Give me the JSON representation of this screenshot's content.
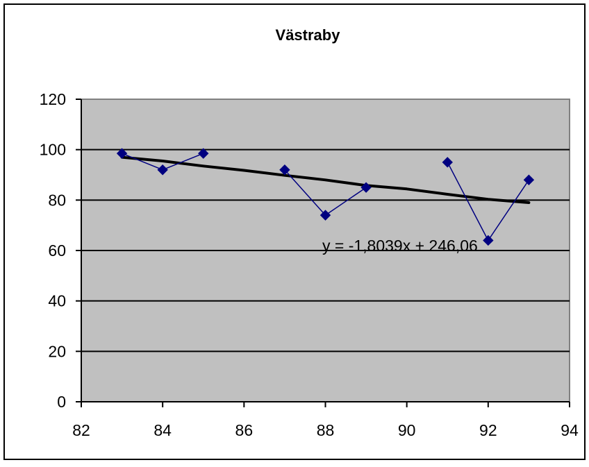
{
  "chart_data": {
    "type": "scatter",
    "title": "Västraby",
    "xlabel": "",
    "ylabel": "",
    "xlim": [
      82,
      94
    ],
    "ylim": [
      0,
      120
    ],
    "x_ticks": [
      82,
      84,
      86,
      88,
      90,
      92,
      94
    ],
    "y_ticks": [
      0,
      20,
      40,
      60,
      80,
      100,
      120
    ],
    "grid": "horizontal",
    "series": [
      {
        "x": [
          83,
          84,
          85,
          87,
          88,
          89,
          91,
          92,
          93
        ],
        "values": [
          98.5,
          92,
          98.5,
          92,
          74,
          85,
          95,
          64,
          88
        ],
        "segments": [
          [
            0,
            2
          ],
          [
            3,
            5
          ],
          [
            6,
            8
          ]
        ],
        "marker": "diamond",
        "color": "#000080"
      }
    ],
    "trendline": {
      "type": "polynomial",
      "x": [
        83,
        84,
        85,
        86,
        87,
        88,
        89,
        90,
        91,
        92,
        93
      ],
      "values": [
        97,
        95.5,
        93.5,
        91.8,
        89.8,
        88,
        85.8,
        84.4,
        82.3,
        80.3,
        79
      ],
      "color": "#000000",
      "equation": "y = -1,8039x + 246,06"
    },
    "plot_area_color": "#c0c0c0"
  }
}
